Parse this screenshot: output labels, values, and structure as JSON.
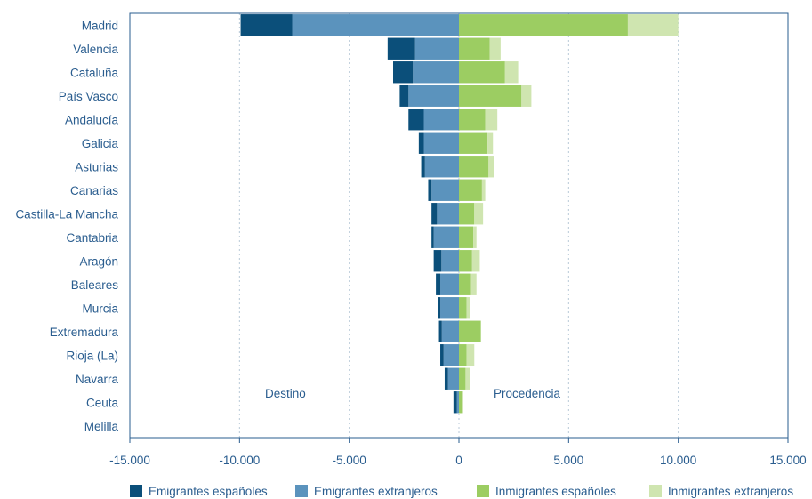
{
  "chart_data": {
    "type": "bar",
    "orientation": "horizontal",
    "stacked": true,
    "title": "",
    "xlabel": "",
    "ylabel": "",
    "xlim": [
      -15000,
      15000
    ],
    "xticks": [
      -15000,
      -10000,
      -5000,
      0,
      5000,
      10000,
      15000
    ],
    "xtick_labels": [
      "-15.000",
      "-10.000",
      "-5.000",
      "0",
      "5.000",
      "10.000",
      "15.000"
    ],
    "grid": "vertical dashed",
    "legend_position": "bottom",
    "categories": [
      "Madrid",
      "Valencia",
      "Cataluña",
      "País Vasco",
      "Andalucía",
      "Galicia",
      "Asturias",
      "Canarias",
      "Castilla-La Mancha",
      "Cantabria",
      "Aragón",
      "Baleares",
      "Murcia",
      "Extremadura",
      "Rioja (La)",
      "Navarra",
      "Ceuta",
      "Melilla"
    ],
    "series": [
      {
        "name": "Emigrantes españoles",
        "color": "#0b4f7a",
        "side": "negative",
        "values": [
          -2350,
          -1250,
          -900,
          -400,
          -700,
          -230,
          -170,
          -150,
          -250,
          -100,
          -350,
          -200,
          -100,
          -130,
          -150,
          -150,
          -150,
          0
        ]
      },
      {
        "name": "Emigrantes extranjeros",
        "color": "#5b93bd",
        "side": "negative",
        "values": [
          -7600,
          -2000,
          -2100,
          -2300,
          -1600,
          -1600,
          -1550,
          -1250,
          -1000,
          -1150,
          -800,
          -850,
          -850,
          -780,
          -700,
          -500,
          -100,
          0
        ]
      },
      {
        "name": "Inmigrantes españoles",
        "color": "#9ccd62",
        "side": "positive",
        "values": [
          7700,
          1400,
          2100,
          2850,
          1200,
          1300,
          1350,
          1050,
          700,
          650,
          600,
          550,
          350,
          1000,
          350,
          300,
          150,
          0
        ]
      },
      {
        "name": "Inmigrantes extranjeros",
        "color": "#cfe5b0",
        "side": "positive",
        "values": [
          2300,
          500,
          600,
          450,
          550,
          250,
          250,
          150,
          400,
          150,
          350,
          250,
          150,
          0,
          350,
          200,
          50,
          0
        ]
      }
    ],
    "annotations": [
      "Destino",
      "Procedencia"
    ]
  },
  "colors": {
    "axis": "#2a5d8f",
    "grid": "#b8c9d8",
    "text": "#2a5d8f"
  }
}
